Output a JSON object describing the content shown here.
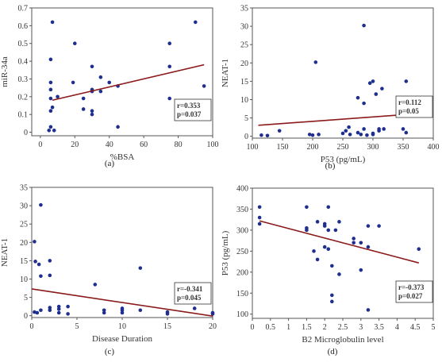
{
  "colors": {
    "points": "#1f2f8f",
    "fit_line": "#8b1a1a",
    "axis": "#555555",
    "box_border": "#333333"
  },
  "chart_data": [
    {
      "type": "scatter",
      "panel": "(a)",
      "xlabel": "%BSA",
      "ylabel": "miR-34a",
      "xlim": [
        -5,
        100
      ],
      "ylim": [
        -0.02,
        0.7
      ],
      "xticks": [
        0,
        20,
        40,
        60,
        80,
        100
      ],
      "yticks": [
        0,
        0.1,
        0.2,
        0.3,
        0.4,
        0.5,
        0.6,
        0.7
      ],
      "fit": [
        [
          7,
          0.18
        ],
        [
          95,
          0.38
        ]
      ],
      "stats": [
        "r=0.353",
        "p=0.037"
      ],
      "points": [
        [
          7,
          0.62
        ],
        [
          6,
          0.41
        ],
        [
          6,
          0.28
        ],
        [
          6,
          0.24
        ],
        [
          6,
          0.19
        ],
        [
          7,
          0.14
        ],
        [
          6,
          0.12
        ],
        [
          6,
          0.03
        ],
        [
          8,
          0.01
        ],
        [
          5,
          0.01
        ],
        [
          10,
          0.2
        ],
        [
          20,
          0.5
        ],
        [
          19,
          0.28
        ],
        [
          25,
          0.19
        ],
        [
          25,
          0.13
        ],
        [
          30,
          0.37
        ],
        [
          30,
          0.24
        ],
        [
          30,
          0.23
        ],
        [
          30,
          0.12
        ],
        [
          30,
          0.1
        ],
        [
          35,
          0.31
        ],
        [
          35,
          0.23
        ],
        [
          40,
          0.28
        ],
        [
          45,
          0.26
        ],
        [
          45,
          0.03
        ],
        [
          75,
          0.5
        ],
        [
          75,
          0.37
        ],
        [
          75,
          0.19
        ],
        [
          90,
          0.62
        ],
        [
          95,
          0.26
        ]
      ]
    },
    {
      "type": "scatter",
      "panel": "(b)",
      "xlabel": "P53 (pg/mL)",
      "ylabel": "NEAT-1",
      "xlim": [
        100,
        400
      ],
      "ylim": [
        -0.5,
        35
      ],
      "xticks": [
        100,
        150,
        200,
        250,
        300,
        350,
        400
      ],
      "yticks": [
        0,
        5,
        10,
        15,
        20,
        25,
        30,
        35
      ],
      "fit": [
        [
          110,
          3.0
        ],
        [
          360,
          6.0
        ]
      ],
      "stats": [
        "r=0.112",
        "p=0.05"
      ],
      "points": [
        [
          115,
          0.3
        ],
        [
          125,
          0.2
        ],
        [
          145,
          1.5
        ],
        [
          195,
          0.5
        ],
        [
          200,
          0.3
        ],
        [
          205,
          20.2
        ],
        [
          210,
          0.5
        ],
        [
          250,
          0.8
        ],
        [
          255,
          1.5
        ],
        [
          260,
          2.5
        ],
        [
          262,
          0.5
        ],
        [
          275,
          10.5
        ],
        [
          275,
          1.0
        ],
        [
          280,
          0.5
        ],
        [
          285,
          30.2
        ],
        [
          285,
          9.0
        ],
        [
          290,
          0.3
        ],
        [
          295,
          14.5
        ],
        [
          300,
          15.0
        ],
        [
          300,
          0.5
        ],
        [
          305,
          11.5
        ],
        [
          310,
          2.0
        ],
        [
          310,
          1.5
        ],
        [
          315,
          13.0
        ],
        [
          318,
          2.0
        ],
        [
          355,
          15.0
        ],
        [
          355,
          1.0
        ],
        [
          350,
          2.0
        ],
        [
          285,
          2.0
        ],
        [
          300,
          0.8
        ]
      ]
    },
    {
      "type": "scatter",
      "panel": "(c)",
      "xlabel": "Disease Duration",
      "ylabel": "NEAT-1",
      "xlim": [
        0,
        20
      ],
      "ylim": [
        -0.5,
        35
      ],
      "xticks": [
        0,
        5,
        10,
        15,
        20
      ],
      "yticks": [
        0,
        5,
        10,
        15,
        20,
        25,
        30,
        35
      ],
      "fit": [
        [
          0,
          7.3
        ],
        [
          20,
          -0.1
        ]
      ],
      "stats": [
        "r=-0.341",
        "p=0.045"
      ],
      "points": [
        [
          0.3,
          20.2
        ],
        [
          0.4,
          14.8
        ],
        [
          0.3,
          1.0
        ],
        [
          0.6,
          0.8
        ],
        [
          0.8,
          14.0
        ],
        [
          1,
          30.2
        ],
        [
          1,
          10.8
        ],
        [
          1,
          1.5
        ],
        [
          2,
          15.0
        ],
        [
          2,
          11.0
        ],
        [
          2,
          2.2
        ],
        [
          2,
          1.5
        ],
        [
          3,
          2.5
        ],
        [
          3,
          1.8
        ],
        [
          3,
          0.8
        ],
        [
          4,
          2.5
        ],
        [
          4,
          0.5
        ],
        [
          7,
          8.5
        ],
        [
          8,
          1.5
        ],
        [
          8,
          0.8
        ],
        [
          10,
          2.0
        ],
        [
          10,
          1.5
        ],
        [
          10,
          0.8
        ],
        [
          12,
          13.0
        ],
        [
          12,
          1.5
        ],
        [
          15,
          1.0
        ],
        [
          15,
          0.5
        ],
        [
          18,
          2.0
        ],
        [
          20,
          0.8
        ],
        [
          20,
          0.5
        ]
      ]
    },
    {
      "type": "scatter",
      "panel": "(d)",
      "xlabel": "B2 Microglobulin level",
      "ylabel": "P53 (pg/mL)",
      "xlim": [
        0,
        5
      ],
      "ylim": [
        90,
        400
      ],
      "xticks": [
        0,
        0.5,
        1,
        1.5,
        2,
        2.5,
        3,
        3.5,
        4,
        4.5,
        5
      ],
      "yticks": [
        100,
        150,
        200,
        250,
        300,
        350,
        400
      ],
      "fit": [
        [
          0.2,
          322
        ],
        [
          4.6,
          222
        ]
      ],
      "stats": [
        "r=-0.373",
        "p=0.027"
      ],
      "points": [
        [
          0.2,
          355
        ],
        [
          0.2,
          330
        ],
        [
          0.2,
          315
        ],
        [
          1.5,
          355
        ],
        [
          1.5,
          305
        ],
        [
          1.5,
          300
        ],
        [
          1.7,
          250
        ],
        [
          1.8,
          320
        ],
        [
          1.8,
          230
        ],
        [
          2.0,
          315
        ],
        [
          2.0,
          310
        ],
        [
          2.0,
          260
        ],
        [
          2.1,
          355
        ],
        [
          2.1,
          300
        ],
        [
          2.1,
          255
        ],
        [
          2.2,
          215
        ],
        [
          2.3,
          300
        ],
        [
          2.4,
          320
        ],
        [
          2.4,
          195
        ],
        [
          2.2,
          145
        ],
        [
          2.2,
          130
        ],
        [
          2.8,
          280
        ],
        [
          2.8,
          270
        ],
        [
          3.0,
          270
        ],
        [
          3.0,
          205
        ],
        [
          3.2,
          310
        ],
        [
          3.2,
          260
        ],
        [
          3.2,
          110
        ],
        [
          3.5,
          310
        ],
        [
          4.6,
          255
        ]
      ]
    }
  ]
}
